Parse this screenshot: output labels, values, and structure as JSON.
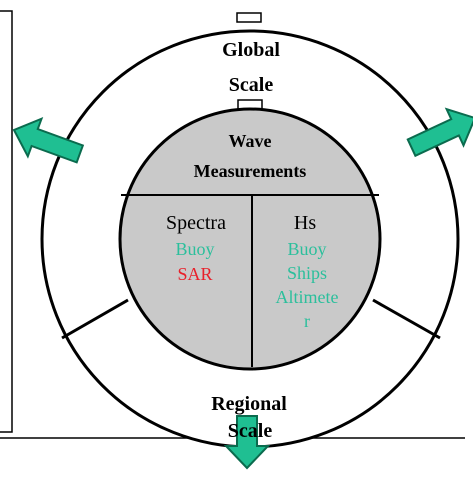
{
  "outer_ring": {
    "top_label_line1": "Global",
    "top_label_line2": "Scale",
    "bottom_label_line1": "Regional",
    "bottom_label_line2": "Scale"
  },
  "center_disc": {
    "title_line1": "Wave",
    "title_line2": "Measurements",
    "left_column": {
      "heading": "Spectra",
      "items": [
        {
          "text": "Buoy",
          "color": "#2bbf9c"
        },
        {
          "text": "SAR",
          "color": "#e8202a"
        }
      ]
    },
    "right_column": {
      "heading": "Hs",
      "items": [
        {
          "text": "Buoy",
          "color": "#2bbf9c"
        },
        {
          "text": "Ships",
          "color": "#2bbf9c"
        },
        {
          "text": "Altimete",
          "color": "#2bbf9c"
        },
        {
          "text": "r",
          "color": "#2bbf9c"
        }
      ]
    }
  },
  "colors": {
    "disc_fill": "#c9c9c9",
    "arrow_fill": "#1fbf92",
    "arrow_stroke": "#0b6b4e",
    "line": "#000000"
  },
  "icons": [
    "arrow-up-left-icon",
    "arrow-up-right-icon",
    "arrow-down-icon"
  ]
}
